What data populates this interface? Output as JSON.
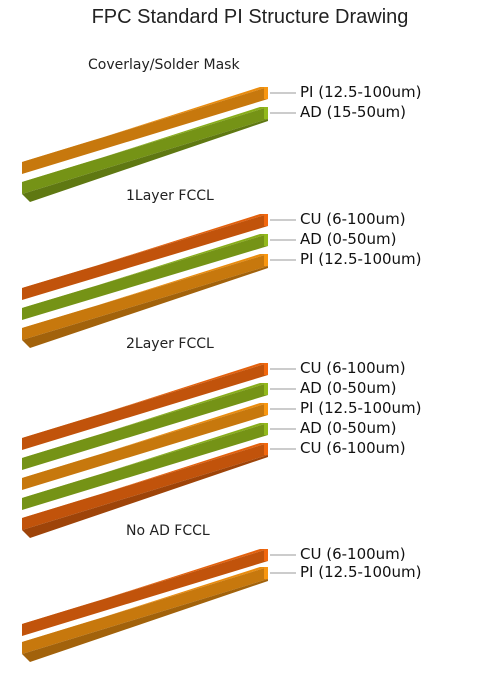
{
  "title": "FPC Standard PI Structure Drawing",
  "colors": {
    "pi": "#D8820E",
    "ad": "#7FA018",
    "cu": "#D25A0C"
  },
  "sections": [
    {
      "title": "Coverlay/Solder Mask",
      "layers": [
        {
          "type": "pi",
          "label": "PI (12.5-100um)"
        },
        {
          "type": "ad",
          "label": "AD (15-50um)"
        }
      ]
    },
    {
      "title": "1Layer FCCL",
      "layers": [
        {
          "type": "cu",
          "label": "CU (6-100um)"
        },
        {
          "type": "ad",
          "label": "AD (0-50um)"
        },
        {
          "type": "pi",
          "label": "PI (12.5-100um)"
        }
      ]
    },
    {
      "title": "2Layer FCCL",
      "layers": [
        {
          "type": "cu",
          "label": "CU (6-100um)"
        },
        {
          "type": "ad",
          "label": "AD (0-50um)"
        },
        {
          "type": "pi",
          "label": "PI (12.5-100um)"
        },
        {
          "type": "ad",
          "label": "AD (0-50um)"
        },
        {
          "type": "cu",
          "label": "CU (6-100um)"
        }
      ]
    },
    {
      "title": "No AD FCCL",
      "layers": [
        {
          "type": "cu",
          "label": "CU (6-100um)"
        },
        {
          "type": "pi",
          "label": "PI (12.5-100um)"
        }
      ]
    }
  ]
}
